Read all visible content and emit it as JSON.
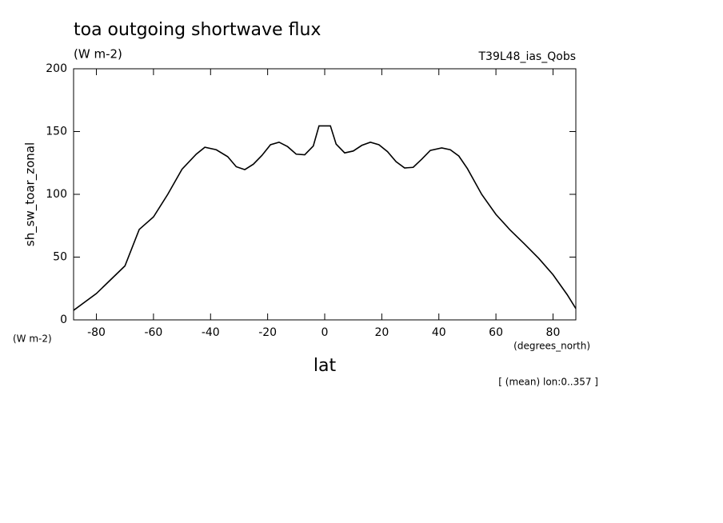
{
  "chart_data": {
    "type": "line",
    "title": "toa outgoing shortwave flux",
    "subtitle": "(W m-2)",
    "dataset_label": "T39L48_ias_Qobs",
    "y_label": "sh_sw_toar_zonal",
    "y_units": "(W m-2)",
    "x_label": "lat",
    "x_units": "(degrees_north)",
    "footnote": "[ (mean) lon:0..357 ]",
    "x": [
      -88,
      -80,
      -75,
      -70,
      -65,
      -60,
      -55,
      -50,
      -45,
      -42,
      -38,
      -34,
      -31,
      -28,
      -25,
      -22,
      -19,
      -16,
      -13,
      -10,
      -7,
      -4,
      -2,
      2,
      4,
      7,
      10,
      13,
      16,
      19,
      22,
      25,
      28,
      31,
      34,
      37,
      41,
      44,
      47,
      50,
      55,
      60,
      65,
      70,
      75,
      80,
      85,
      88
    ],
    "series": [
      {
        "name": "sh_sw_toar_zonal",
        "color": "#000000",
        "values": [
          7.6,
          21,
          32,
          43,
          72,
          82,
          100,
          120,
          132,
          137.5,
          135.5,
          130,
          122,
          119.7,
          124,
          131,
          139.5,
          141.5,
          138,
          132,
          131.5,
          138.5,
          154.5,
          154.5,
          140,
          133,
          134.5,
          139,
          141.5,
          139.5,
          134,
          126,
          121,
          121.5,
          128,
          135,
          137,
          135.5,
          130.5,
          120.5,
          100,
          84,
          71.5,
          60.5,
          49,
          36,
          20,
          9
        ]
      }
    ],
    "xlim": [
      -88,
      88
    ],
    "ylim": [
      0,
      200
    ],
    "xticks": [
      -80,
      -60,
      -40,
      -20,
      0,
      20,
      40,
      60,
      80
    ],
    "yticks": [
      0,
      50,
      100,
      150,
      200
    ],
    "grid": false
  }
}
